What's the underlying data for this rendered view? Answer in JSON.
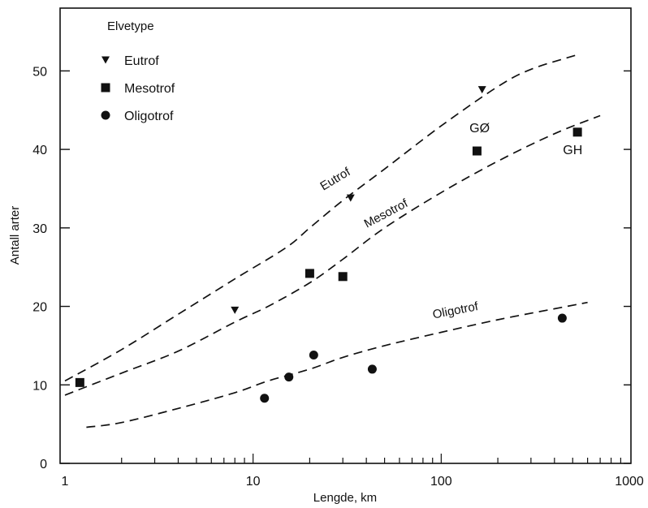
{
  "chart_data": {
    "type": "scatter",
    "title": "",
    "xlabel": "Lengde, km",
    "ylabel": "Antall arter",
    "xscale": "log",
    "xlim": [
      1,
      1000
    ],
    "ylim": [
      0,
      58
    ],
    "x_ticks": [
      1,
      10,
      100,
      1000
    ],
    "x_tick_labels": [
      "1",
      "10",
      "100",
      "1000"
    ],
    "y_ticks": [
      0,
      10,
      20,
      30,
      40,
      50
    ],
    "y_tick_labels": [
      "0",
      "10",
      "20",
      "30",
      "40",
      "50"
    ],
    "grid": false,
    "legend": {
      "title": "Elvetype",
      "placement": "top-left",
      "entries": [
        {
          "label": "Eutrof",
          "marker": "triangle-down"
        },
        {
          "label": "Mesotrof",
          "marker": "square"
        },
        {
          "label": "Oligotrof",
          "marker": "circle"
        }
      ]
    },
    "series": [
      {
        "name": "Eutrof",
        "marker": "triangle-down",
        "points": [
          {
            "x": 8,
            "y": 19.5
          },
          {
            "x": 33,
            "y": 33.8
          },
          {
            "x": 165,
            "y": 47.6
          }
        ]
      },
      {
        "name": "Mesotrof",
        "marker": "square",
        "points": [
          {
            "x": 1.2,
            "y": 10.3
          },
          {
            "x": 20,
            "y": 24.2
          },
          {
            "x": 30,
            "y": 23.8
          },
          {
            "x": 155,
            "y": 39.8
          },
          {
            "x": 530,
            "y": 42.2
          }
        ]
      },
      {
        "name": "Oligotrof",
        "marker": "circle",
        "points": [
          {
            "x": 11.5,
            "y": 8.3
          },
          {
            "x": 15.5,
            "y": 11.0
          },
          {
            "x": 21,
            "y": 13.8
          },
          {
            "x": 43,
            "y": 12.0
          },
          {
            "x": 440,
            "y": 18.5
          }
        ]
      }
    ],
    "curves": [
      {
        "label": "Eutrof",
        "style": "dashed",
        "points": [
          [
            1,
            10.5
          ],
          [
            2,
            14.5
          ],
          [
            4,
            19
          ],
          [
            8,
            23.5
          ],
          [
            15,
            27.5
          ],
          [
            20,
            30
          ],
          [
            30,
            33.5
          ],
          [
            50,
            37.5
          ],
          [
            100,
            43
          ],
          [
            200,
            48
          ],
          [
            300,
            50.2
          ],
          [
            520,
            52
          ]
        ]
      },
      {
        "label": "Mesotrof",
        "style": "dashed",
        "points": [
          [
            1,
            8.7
          ],
          [
            2,
            11.5
          ],
          [
            4,
            14.3
          ],
          [
            8,
            18
          ],
          [
            12,
            20
          ],
          [
            20,
            23
          ],
          [
            30,
            26
          ],
          [
            50,
            30
          ],
          [
            100,
            34.5
          ],
          [
            200,
            38.5
          ],
          [
            400,
            42
          ],
          [
            700,
            44.3
          ]
        ]
      },
      {
        "label": "Oligotrof",
        "style": "dashed",
        "points": [
          [
            1.3,
            4.6
          ],
          [
            2,
            5.2
          ],
          [
            4,
            7
          ],
          [
            8,
            9
          ],
          [
            12,
            10.5
          ],
          [
            20,
            12
          ],
          [
            30,
            13.5
          ],
          [
            50,
            15
          ],
          [
            100,
            16.7
          ],
          [
            200,
            18.3
          ],
          [
            400,
            19.7
          ],
          [
            600,
            20.5
          ]
        ]
      }
    ],
    "annotations": [
      {
        "text": "GØ",
        "x": 160,
        "y": 42.2
      },
      {
        "text": "GH",
        "x": 500,
        "y": 39.4
      }
    ]
  }
}
